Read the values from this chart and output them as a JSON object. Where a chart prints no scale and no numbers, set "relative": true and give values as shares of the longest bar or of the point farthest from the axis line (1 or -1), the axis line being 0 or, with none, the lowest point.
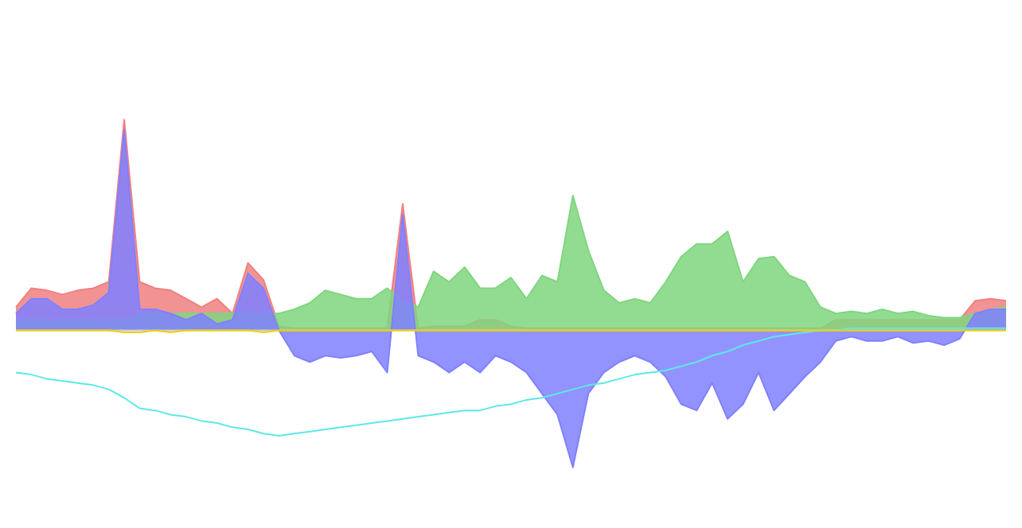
{
  "chart_data": {
    "type": "area",
    "relative": true,
    "tick_labels": false,
    "legend": false,
    "categories": [
      null,
      null,
      null,
      null,
      null,
      null,
      null,
      null,
      null,
      null,
      null,
      null,
      null,
      null,
      null,
      null,
      null,
      null,
      null,
      null,
      null,
      null,
      null,
      null,
      null,
      null,
      null,
      null,
      null,
      null,
      null,
      null,
      null,
      null,
      null,
      null,
      null,
      null,
      null,
      null,
      null,
      null,
      null,
      null,
      null,
      null,
      null,
      null,
      null,
      null,
      null,
      null,
      null,
      null,
      null,
      null,
      null,
      null,
      null,
      null,
      null,
      null,
      null,
      null,
      null
    ],
    "series": [
      {
        "color": "#f08080",
        "values": [
          0.11,
          0.2,
          0.19,
          0.17,
          0.19,
          0.2,
          0.23,
          1.0,
          0.23,
          0.2,
          0.19,
          0.15,
          0.11,
          0.15,
          0.08,
          0.32,
          0.24,
          0.02,
          0.01,
          0.01,
          0.01,
          0.01,
          0.01,
          0.01,
          0.01,
          0.6,
          0.01,
          0.02,
          0.02,
          0.02,
          0.05,
          0.05,
          0.02,
          0.01,
          0.01,
          0.01,
          0.01,
          0.01,
          0.01,
          0.01,
          0.01,
          0.01,
          0.01,
          0.01,
          0.01,
          0.01,
          0.01,
          0.01,
          0.01,
          0.01,
          0.01,
          0.01,
          0.01,
          0.05,
          0.05,
          0.05,
          0.05,
          0.05,
          0.05,
          0.05,
          0.05,
          0.05,
          0.14,
          0.15,
          0.14
        ]
      },
      {
        "color": "#7fd67f",
        "values": [
          0.05,
          0.05,
          0.05,
          0.05,
          0.05,
          0.05,
          0.05,
          0.05,
          0.08,
          0.08,
          0.08,
          0.08,
          0.08,
          0.08,
          0.08,
          0.08,
          0.08,
          0.08,
          0.1,
          0.13,
          0.19,
          0.17,
          0.15,
          0.15,
          0.2,
          0.14,
          0.11,
          0.28,
          0.23,
          0.3,
          0.2,
          0.2,
          0.25,
          0.15,
          0.26,
          0.23,
          0.64,
          0.38,
          0.19,
          0.13,
          0.15,
          0.13,
          0.23,
          0.35,
          0.41,
          0.41,
          0.47,
          0.23,
          0.34,
          0.35,
          0.26,
          0.23,
          0.11,
          0.08,
          0.09,
          0.08,
          0.1,
          0.08,
          0.09,
          0.07,
          0.06,
          0.06,
          0.08,
          0.1,
          0.11
        ]
      },
      {
        "color": "#8080ff",
        "values": [
          0.08,
          0.15,
          0.15,
          0.1,
          0.1,
          0.12,
          0.18,
          0.95,
          0.1,
          0.1,
          0.08,
          0.05,
          0.08,
          0.03,
          0.05,
          0.27,
          0.2,
          0,
          -0.12,
          -0.15,
          -0.12,
          -0.13,
          -0.12,
          -0.1,
          -0.2,
          0.55,
          -0.12,
          -0.15,
          -0.2,
          -0.15,
          -0.2,
          -0.12,
          -0.15,
          -0.2,
          -0.3,
          -0.4,
          -0.65,
          -0.3,
          -0.2,
          -0.15,
          -0.12,
          -0.15,
          -0.22,
          -0.35,
          -0.38,
          -0.25,
          -0.42,
          -0.35,
          -0.2,
          -0.38,
          -0.3,
          -0.22,
          -0.15,
          -0.05,
          -0.03,
          -0.05,
          -0.05,
          -0.03,
          -0.06,
          -0.05,
          -0.07,
          -0.04,
          0.08,
          0.1,
          0.1
        ]
      },
      {
        "type": "line",
        "color": "#5ee8e8",
        "values": [
          -0.2,
          -0.21,
          -0.23,
          -0.24,
          -0.25,
          -0.26,
          -0.28,
          -0.32,
          -0.37,
          -0.38,
          -0.4,
          -0.41,
          -0.43,
          -0.44,
          -0.46,
          -0.47,
          -0.49,
          -0.5,
          -0.49,
          -0.48,
          -0.47,
          -0.46,
          -0.45,
          -0.44,
          -0.43,
          -0.42,
          -0.41,
          -0.4,
          -0.39,
          -0.38,
          -0.38,
          -0.36,
          -0.35,
          -0.33,
          -0.32,
          -0.3,
          -0.28,
          -0.26,
          -0.25,
          -0.23,
          -0.21,
          -0.2,
          -0.19,
          -0.17,
          -0.15,
          -0.12,
          -0.1,
          -0.07,
          -0.05,
          -0.03,
          -0.02,
          -0.01,
          0,
          0,
          0.01,
          0.01,
          0.01,
          0.01,
          0.01,
          0.01,
          0.01,
          0.01,
          0.01,
          0.01,
          0.01
        ]
      },
      {
        "type": "line",
        "color": "#f0d000",
        "values": [
          0,
          0,
          0,
          0,
          0,
          0,
          0,
          -0.01,
          -0.01,
          0,
          -0.01,
          0,
          0,
          0,
          0,
          0,
          -0.01,
          0,
          0,
          0,
          0,
          0,
          0,
          0,
          0,
          0,
          0,
          0,
          0,
          0,
          0,
          0,
          0,
          0,
          0,
          0,
          0,
          0,
          0,
          0,
          0,
          0,
          0,
          0,
          0,
          0,
          0,
          0,
          0,
          0,
          0,
          0,
          0,
          0,
          0,
          0,
          0,
          0,
          0,
          0,
          0,
          0,
          0,
          0,
          0
        ]
      }
    ]
  }
}
